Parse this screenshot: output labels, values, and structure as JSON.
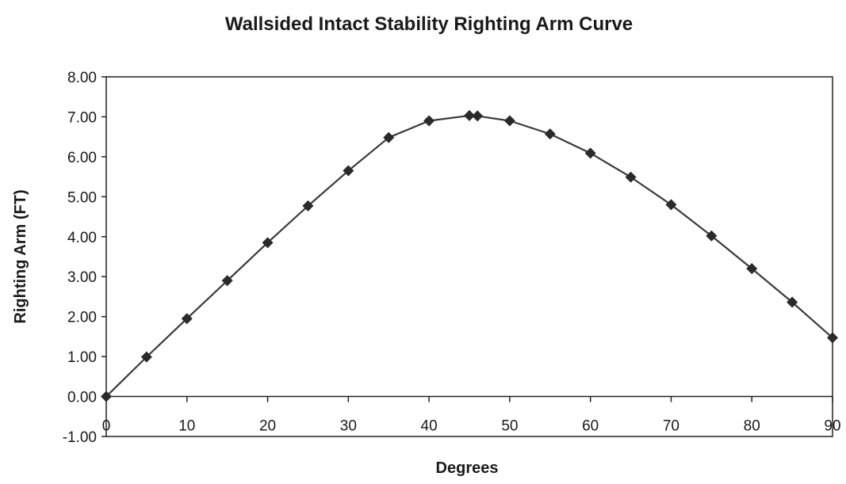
{
  "chart_data": {
    "type": "line",
    "title": "Wallsided Intact Stability Righting Arm Curve",
    "xlabel": "Degrees",
    "ylabel": "Righting Arm (FT)",
    "xlim": [
      0,
      90
    ],
    "ylim": [
      -1,
      8
    ],
    "x_ticks": [
      {
        "value": 0,
        "label": "0"
      },
      {
        "value": 10,
        "label": "10"
      },
      {
        "value": 20,
        "label": "20"
      },
      {
        "value": 30,
        "label": "30"
      },
      {
        "value": 40,
        "label": "40"
      },
      {
        "value": 50,
        "label": "50"
      },
      {
        "value": 60,
        "label": "60"
      },
      {
        "value": 70,
        "label": "70"
      },
      {
        "value": 80,
        "label": "80"
      },
      {
        "value": 90,
        "label": "90"
      }
    ],
    "y_ticks": [
      {
        "value": -1,
        "label": "-1.00"
      },
      {
        "value": 0,
        "label": "0.00"
      },
      {
        "value": 1,
        "label": "1.00"
      },
      {
        "value": 2,
        "label": "2.00"
      },
      {
        "value": 3,
        "label": "3.00"
      },
      {
        "value": 4,
        "label": "4.00"
      },
      {
        "value": 5,
        "label": "5.00"
      },
      {
        "value": 6,
        "label": "6.00"
      },
      {
        "value": 7,
        "label": "7.00"
      },
      {
        "value": 8,
        "label": "8.00"
      }
    ],
    "grid": false,
    "legend": "none",
    "marker": "diamond",
    "colors": {
      "line": "#3a3a3a",
      "marker": "#2a2a2a",
      "axis": "#222222",
      "text": "#1a1a1a"
    },
    "series": [
      {
        "x": [
          0,
          5,
          10,
          15,
          20,
          25,
          30,
          35,
          40,
          45,
          46,
          50,
          55,
          60,
          65,
          70,
          75,
          80,
          85,
          90
        ],
        "y": [
          0.0,
          0.99,
          1.95,
          2.9,
          3.85,
          4.77,
          5.65,
          6.48,
          6.9,
          7.03,
          7.02,
          6.9,
          6.57,
          6.09,
          5.49,
          4.8,
          4.02,
          3.2,
          2.36,
          1.47
        ]
      }
    ]
  }
}
